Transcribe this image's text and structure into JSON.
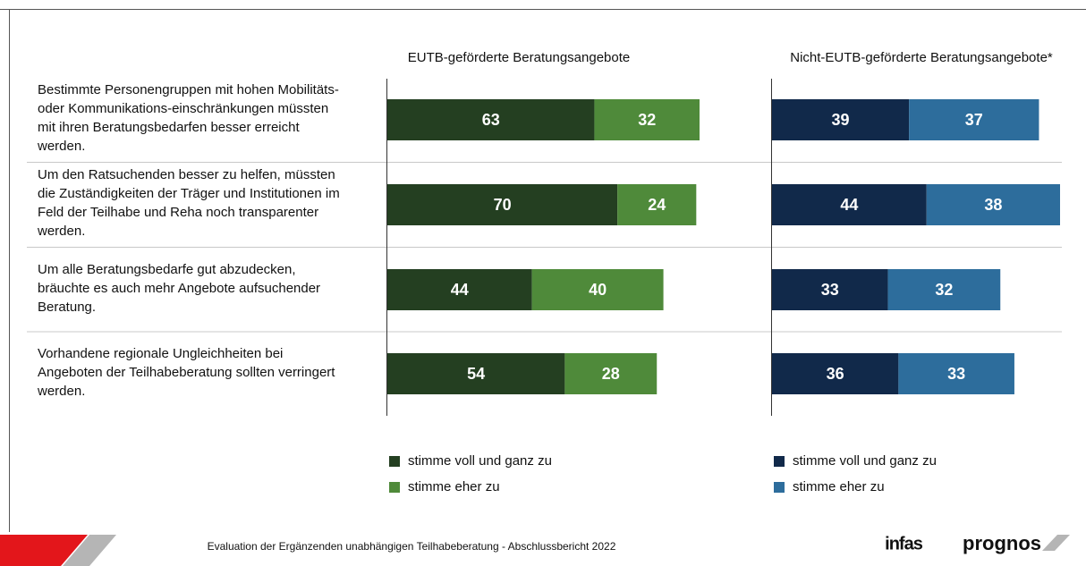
{
  "chart_data": [
    {
      "type": "stacked_bar",
      "orientation": "horizontal",
      "title": "EUTB-geförderte Beratungsangebote",
      "categories": [
        "Bestimmte Personengruppen mit hohen Mobilitäts- oder Kommunikations-einschränkungen müssten mit ihren Beratungsbedarfen besser erreicht werden.",
        "Um den Ratsuchenden besser zu helfen, müssten die Zuständigkeiten der Träger und Institutionen im Feld der Teilhabe und Reha noch transparenter werden.",
        "Um alle Beratungsbedarfe gut abzudecken, bräuchte es auch mehr Angebote aufsuchender Beratung.",
        "Vorhandene regionale Ungleichheiten bei Angeboten der Teilhabeberatung sollten verringert werden."
      ],
      "series": [
        {
          "name": "stimme voll und ganz zu",
          "color": "#243f21",
          "values": [
            63,
            70,
            44,
            54
          ]
        },
        {
          "name": "stimme eher zu",
          "color": "#4f8a3a",
          "values": [
            32,
            24,
            40,
            28
          ]
        }
      ]
    },
    {
      "type": "stacked_bar",
      "orientation": "horizontal",
      "title": "Nicht-EUTB-geförderte Beratungsangebote*",
      "series": [
        {
          "name": "stimme voll und ganz zu",
          "color": "#11294a",
          "values": [
            39,
            44,
            33,
            36
          ]
        },
        {
          "name": "stimme eher zu",
          "color": "#2d6d9c",
          "values": [
            37,
            38,
            32,
            33
          ]
        }
      ]
    }
  ],
  "footer": {
    "text": "Evaluation der Ergänzenden unabhängigen Teilhabeberatung - Abschlussbericht 2022",
    "logos": [
      "infas",
      "prognos"
    ]
  }
}
